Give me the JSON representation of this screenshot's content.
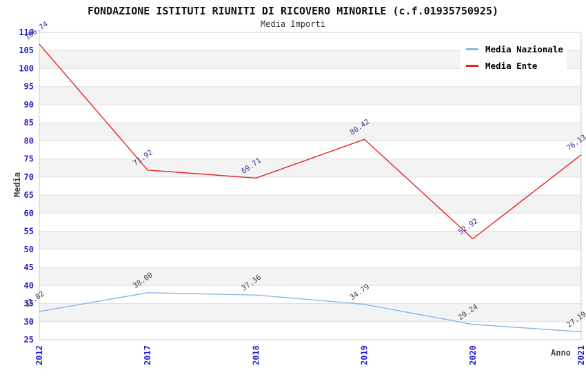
{
  "header": {
    "title": "FONDAZIONE ISTITUTI RIUNITI DI RICOVERO MINORILE (c.f.01935750925)",
    "subtitle": "Media Importi"
  },
  "axes": {
    "y_title": "Media",
    "x_title": "Anno"
  },
  "legend": {
    "position": "top-right",
    "items": [
      {
        "label": "Media Nazionale",
        "color": "#86b6e6"
      },
      {
        "label": "Media Ente",
        "color": "#e62222"
      }
    ]
  },
  "colors": {
    "tick_label": "#2222cc",
    "band_gray": "#f3f3f3",
    "band_white": "#ffffff",
    "gridline": "#e0e0e0",
    "plot_border": "#cccccc",
    "axis_title": "#444444"
  },
  "chart_data": {
    "type": "line",
    "title": "FONDAZIONE ISTITUTI RIUNITI DI RICOVERO MINORILE (c.f.01935750925)",
    "subtitle": "Media Importi",
    "xlabel": "Anno",
    "ylabel": "Media",
    "x": [
      "2012",
      "2017",
      "2018",
      "2019",
      "2020",
      "2021"
    ],
    "series": [
      {
        "name": "Media Nazionale",
        "color": "#86b6e6",
        "label_color": "#3d3d3d",
        "values": [
          32.82,
          38.0,
          37.36,
          34.79,
          29.24,
          27.19
        ]
      },
      {
        "name": "Media Ente",
        "color": "#e62222",
        "label_color": "#333399",
        "values": [
          106.74,
          71.92,
          69.71,
          80.42,
          52.92,
          76.13
        ]
      }
    ],
    "ylim": [
      25,
      110
    ],
    "ytick_step": 5,
    "grid": "horizontal-bands-alternating",
    "legend_position": "top-right",
    "data_labels": "rotated -35deg, two decimals"
  }
}
